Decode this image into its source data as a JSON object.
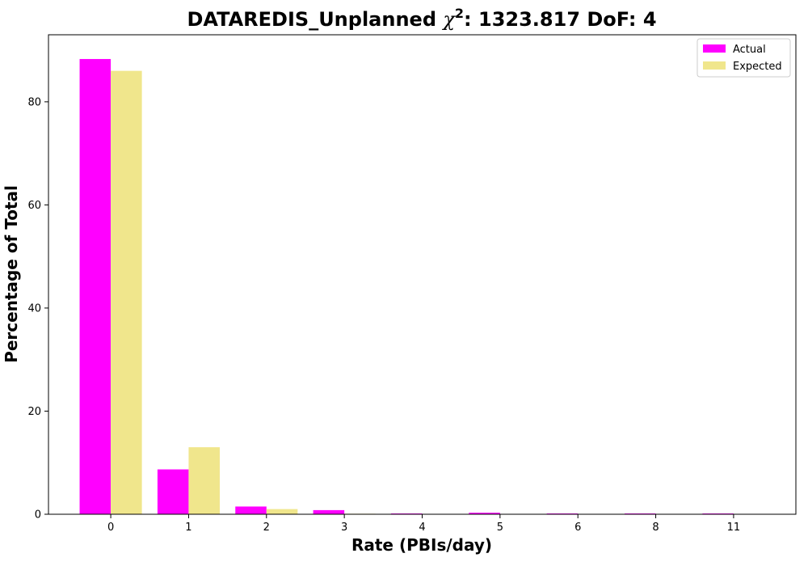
{
  "chart_data": {
    "type": "bar",
    "title": {
      "prefix": "DATAREDIS_Unplanned ",
      "symbol": "χ",
      "superscript": "2",
      "suffix": ": 1323.817 DoF: 4"
    },
    "xlabel": "Rate (PBIs/day)",
    "ylabel": "Percentage of Total",
    "categories": [
      "0",
      "1",
      "2",
      "3",
      "4",
      "5",
      "6",
      "8",
      "11"
    ],
    "series": [
      {
        "name": "Actual",
        "color": "#ff00ff",
        "values": [
          88.3,
          8.7,
          1.5,
          0.8,
          0.15,
          0.3,
          0.15,
          0.15,
          0.15
        ]
      },
      {
        "name": "Expected",
        "color": "#f0e68c",
        "values": [
          86.0,
          13.0,
          1.0,
          0.1,
          0.0,
          0.0,
          0.0,
          0.0,
          0.0
        ]
      }
    ],
    "ylim": [
      0,
      93.0
    ],
    "yticks": [
      0,
      20,
      40,
      60,
      80
    ],
    "grid": false,
    "legend_position": "top-right"
  }
}
